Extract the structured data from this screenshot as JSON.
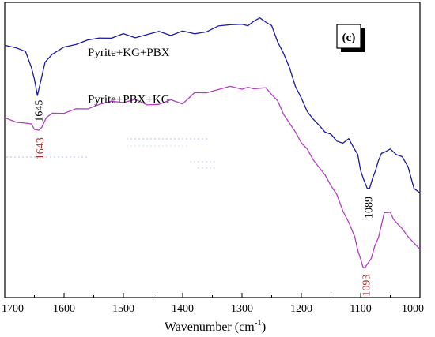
{
  "chart_data": {
    "type": "line",
    "panel_label": "(c)",
    "xlabel": "Wavenumber (cm",
    "xlabel_sup": "-1",
    "xlabel_close": ")",
    "xlim": [
      1700,
      1000
    ],
    "x_reversed": true,
    "x_ticks": [
      1700,
      1600,
      1500,
      1400,
      1300,
      1200,
      1100,
      1000
    ],
    "y_ticks_shown": false,
    "grid": false,
    "legend": "none",
    "series": [
      {
        "name": "Pyrite+KG+PBX",
        "color": "#1a1aa6",
        "x": [
          1700,
          1680,
          1665,
          1655,
          1650,
          1645,
          1640,
          1632,
          1620,
          1600,
          1580,
          1560,
          1540,
          1520,
          1500,
          1480,
          1460,
          1440,
          1420,
          1400,
          1380,
          1360,
          1340,
          1320,
          1300,
          1290,
          1280,
          1270,
          1260,
          1250,
          1240,
          1230,
          1220,
          1210,
          1200,
          1190,
          1180,
          1170,
          1160,
          1150,
          1140,
          1130,
          1120,
          1110,
          1105,
          1100,
          1095,
          1089,
          1085,
          1080,
          1075,
          1070,
          1065,
          1060,
          1050,
          1040,
          1030,
          1020,
          1010,
          1000
        ],
        "y": [
          88,
          86,
          82,
          72,
          62,
          52,
          60,
          74,
          82,
          86,
          90,
          92,
          92,
          94,
          96,
          95,
          96,
          97,
          96,
          98,
          98,
          98,
          101,
          104,
          103,
          104,
          106,
          107,
          106,
          102,
          92,
          82,
          70,
          58,
          48,
          40,
          33,
          27,
          24,
          21,
          18,
          15,
          17,
          11,
          6,
          -4,
          -12,
          -20,
          -18,
          -12,
          -4,
          2,
          6,
          9,
          10,
          8,
          5,
          -4,
          -18,
          -22
        ]
      },
      {
        "name": "Pyrite+PBX+KG",
        "color": "#b040c0",
        "x": [
          1700,
          1680,
          1665,
          1655,
          1650,
          1643,
          1638,
          1630,
          1620,
          1600,
          1580,
          1560,
          1540,
          1520,
          1500,
          1480,
          1460,
          1440,
          1420,
          1400,
          1380,
          1360,
          1340,
          1320,
          1300,
          1290,
          1280,
          1270,
          1260,
          1250,
          1240,
          1230,
          1220,
          1210,
          1200,
          1190,
          1180,
          1170,
          1160,
          1150,
          1140,
          1130,
          1120,
          1110,
          1105,
          1100,
          1096,
          1093,
          1088,
          1082,
          1076,
          1070,
          1064,
          1060,
          1055,
          1050,
          1045,
          1040,
          1030,
          1020,
          1010,
          1000
        ],
        "y": [
          34,
          32,
          30,
          28,
          26,
          24,
          28,
          34,
          36,
          38,
          40,
          42,
          44,
          45,
          46,
          47,
          45,
          44,
          46,
          45,
          52,
          54,
          55,
          56,
          56,
          56,
          57,
          56,
          55,
          52,
          46,
          38,
          30,
          22,
          16,
          10,
          4,
          -3,
          -10,
          -16,
          -24,
          -34,
          -44,
          -56,
          -64,
          -72,
          -76,
          -78,
          -76,
          -70,
          -62,
          -54,
          -44,
          -38,
          -36,
          -37,
          -40,
          -44,
          -50,
          -54,
          -60,
          -64
        ]
      }
    ],
    "series_labels": [
      "Pyrite+KG+PBX",
      "Pyrite+PBX+KG"
    ],
    "annotations": [
      {
        "text": "1645",
        "x": 1645,
        "y": 52,
        "series": 0,
        "color": "#000000"
      },
      {
        "text": "1643",
        "x": 1643,
        "y": 24,
        "series": 1,
        "color": "#b03030"
      },
      {
        "text": "1089",
        "x": 1089,
        "y": -20,
        "series": 0,
        "color": "#000000"
      },
      {
        "text": "1093",
        "x": 1093,
        "y": -78,
        "series": 1,
        "color": "#b03030"
      }
    ]
  }
}
